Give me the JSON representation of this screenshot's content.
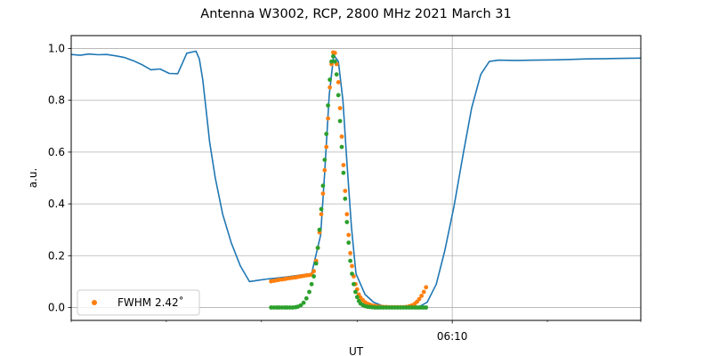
{
  "chart_data": {
    "type": "line",
    "title": "Antenna W3002, RCP, 2800 MHz 2021 March 31",
    "xlabel": "UT",
    "ylabel": "a.u.",
    "xlim": [
      0,
      100
    ],
    "ylim": [
      -0.05,
      1.05
    ],
    "yticks": [
      0.0,
      0.2,
      0.4,
      0.6,
      0.8,
      1.0
    ],
    "ytick_labels": [
      "0.0",
      "0.2",
      "0.4",
      "0.6",
      "0.8",
      "1.0"
    ],
    "xmajor": [
      {
        "x": 66.9,
        "label": "06:10"
      }
    ],
    "xminor": [
      0,
      16.7,
      33.4,
      50.2,
      83.6,
      100
    ],
    "grid": true,
    "legend": {
      "position": "lower-left",
      "entries": [
        {
          "label": "FWHM 2.42$^\\circ$",
          "display": "FWHM 2.42˚",
          "color": "#ff7f0e"
        }
      ]
    },
    "series": [
      {
        "kind": "line",
        "color": "#1f77b4",
        "x": [
          0,
          1.6,
          3.1,
          4.7,
          6.2,
          7.8,
          9.4,
          10.9,
          12.5,
          14,
          15.6,
          17.2,
          18.7,
          20.3,
          21.9,
          22.5,
          23.1,
          23.7,
          24.3,
          25.3,
          26.6,
          28.1,
          29.7,
          31.3,
          32.8,
          34.4,
          35.9,
          37.5,
          39.1,
          40.6,
          42.2,
          43.8,
          44.5,
          45.3,
          46.1,
          46.9,
          47.7,
          48.4,
          49.2,
          50,
          51.6,
          53.1,
          54.7,
          56.3,
          57.8,
          59.4,
          61,
          62.5,
          64.1,
          65.6,
          67.2,
          68.8,
          70.3,
          71.9,
          73.4,
          75,
          78.1,
          81.3,
          84.4,
          87.5,
          90.6,
          93.8,
          96.9,
          100
        ],
        "y": [
          0.977,
          0.974,
          0.979,
          0.976,
          0.977,
          0.972,
          0.965,
          0.953,
          0.937,
          0.918,
          0.921,
          0.904,
          0.903,
          0.982,
          0.99,
          0.96,
          0.88,
          0.76,
          0.64,
          0.5,
          0.36,
          0.25,
          0.16,
          0.1,
          0.105,
          0.11,
          0.113,
          0.117,
          0.122,
          0.126,
          0.13,
          0.28,
          0.52,
          0.82,
          0.975,
          0.95,
          0.8,
          0.56,
          0.31,
          0.13,
          0.05,
          0.02,
          0.006,
          0.002,
          0.001,
          0.001,
          0.002,
          0.02,
          0.09,
          0.22,
          0.39,
          0.59,
          0.77,
          0.9,
          0.95,
          0.955,
          0.954,
          0.955,
          0.956,
          0.958,
          0.96,
          0.961,
          0.962,
          0.963
        ]
      },
      {
        "kind": "scatter",
        "name": "FWHM 2.42˚",
        "color": "#ff7f0e",
        "x": [
          35.1,
          35.6,
          36.1,
          36.5,
          37,
          37.5,
          37.9,
          38.4,
          38.9,
          39.4,
          39.8,
          40.3,
          40.8,
          41.3,
          41.8,
          42.2,
          42.6,
          43,
          43.3,
          43.6,
          43.9,
          44.2,
          44.5,
          44.8,
          45.1,
          45.4,
          45.7,
          46,
          46.3,
          46.6,
          46.9,
          47.2,
          47.5,
          47.8,
          48.1,
          48.4,
          48.7,
          49,
          49.3,
          49.6,
          49.9,
          50.2,
          50.5,
          50.8,
          51.2,
          51.6,
          52,
          52.4,
          52.8,
          53.3,
          53.8,
          54.3,
          54.8,
          55.3,
          55.8,
          56.3,
          56.8,
          57.3,
          57.8,
          58.3,
          58.8,
          59.3,
          59.8,
          60.3,
          60.7,
          61.1,
          61.5,
          61.9,
          62.3
        ],
        "y": [
          0.101,
          0.103,
          0.105,
          0.107,
          0.108,
          0.11,
          0.112,
          0.113,
          0.115,
          0.116,
          0.118,
          0.12,
          0.122,
          0.124,
          0.125,
          0.127,
          0.14,
          0.18,
          0.23,
          0.29,
          0.36,
          0.44,
          0.53,
          0.62,
          0.73,
          0.85,
          0.94,
          0.985,
          0.983,
          0.94,
          0.87,
          0.77,
          0.66,
          0.55,
          0.45,
          0.36,
          0.28,
          0.21,
          0.16,
          0.12,
          0.09,
          0.07,
          0.05,
          0.038,
          0.028,
          0.02,
          0.015,
          0.011,
          0.008,
          0.006,
          0.004,
          0.003,
          0.002,
          0.002,
          0.001,
          0.001,
          0.001,
          0.001,
          0.001,
          0.001,
          0.002,
          0.004,
          0.008,
          0.014,
          0.022,
          0.032,
          0.045,
          0.06,
          0.078
        ]
      },
      {
        "kind": "scatter",
        "color": "#2ca02c",
        "x": [
          35.1,
          35.6,
          36.1,
          36.5,
          37,
          37.5,
          37.9,
          38.4,
          38.9,
          39.4,
          39.8,
          40.3,
          40.8,
          41.3,
          41.8,
          42.2,
          42.6,
          43,
          43.3,
          43.6,
          43.9,
          44.2,
          44.5,
          44.8,
          45.1,
          45.4,
          45.7,
          46,
          46.3,
          46.6,
          46.9,
          47.2,
          47.5,
          47.8,
          48.1,
          48.4,
          48.7,
          49,
          49.3,
          49.6,
          49.9,
          50.2,
          50.5,
          50.8,
          51.2,
          51.6,
          52,
          52.4,
          52.8,
          53.3,
          53.8,
          54.3,
          54.8,
          55.3,
          55.8,
          56.3,
          56.8,
          57.3,
          57.8,
          58.3,
          58.8,
          59.3,
          59.8,
          60.3,
          60.7,
          61.1,
          61.5,
          61.9,
          62.3
        ],
        "y": [
          0,
          0,
          0,
          0,
          0,
          0,
          0,
          0,
          0,
          0.001,
          0.003,
          0.008,
          0.018,
          0.035,
          0.06,
          0.09,
          0.12,
          0.17,
          0.23,
          0.3,
          0.38,
          0.47,
          0.57,
          0.67,
          0.78,
          0.88,
          0.95,
          0.97,
          0.95,
          0.9,
          0.82,
          0.72,
          0.62,
          0.52,
          0.42,
          0.33,
          0.25,
          0.18,
          0.13,
          0.09,
          0.06,
          0.04,
          0.025,
          0.015,
          0.009,
          0.005,
          0.003,
          0.002,
          0.001,
          0,
          0,
          0,
          0,
          0,
          0,
          0,
          0,
          0,
          0,
          0,
          0,
          0,
          0,
          0,
          0,
          0,
          0,
          0,
          0
        ]
      }
    ]
  }
}
